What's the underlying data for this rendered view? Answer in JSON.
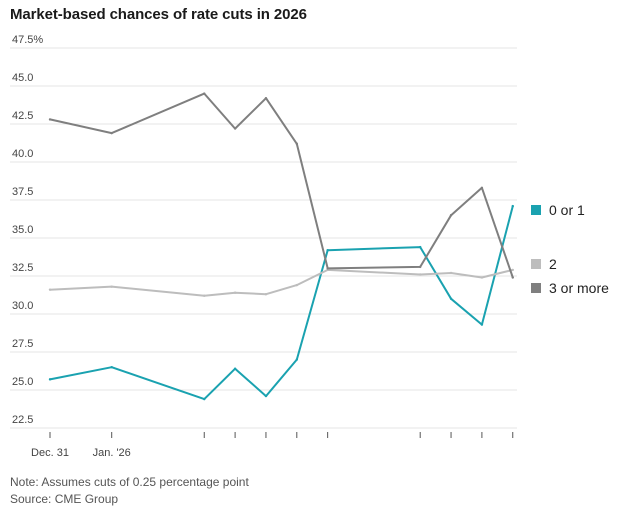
{
  "chart_data": {
    "type": "line",
    "title": "Market-based chances of rate cuts in 2026",
    "ylabel": "",
    "xlabel": "",
    "y_unit_suffix": "%",
    "ylim": [
      22.5,
      47.5
    ],
    "yticks": [
      "22.5",
      "25.0",
      "27.5",
      "30.0",
      "32.5",
      "35.0",
      "37.5",
      "40.0",
      "42.5",
      "45.0",
      "47.5%"
    ],
    "ytick_values": [
      22.5,
      25.0,
      27.5,
      30.0,
      32.5,
      35.0,
      37.5,
      40.0,
      42.5,
      45.0,
      47.5
    ],
    "xticks": [
      "Dec. 31",
      "Jan. '26",
      "",
      "",
      "",
      "",
      "",
      "",
      "",
      "",
      ""
    ],
    "x": [
      0,
      2,
      5,
      6,
      7,
      8,
      9,
      12,
      13,
      14,
      15
    ],
    "grid": true,
    "legend_position": "right",
    "series": [
      {
        "name": "0 or 1",
        "color": "#1aa2b0",
        "values": [
          25.7,
          26.5,
          24.4,
          26.4,
          24.6,
          27.0,
          34.2,
          34.4,
          31.0,
          29.3,
          37.1
        ]
      },
      {
        "name": "2",
        "color": "#bdbdbd",
        "values": [
          31.6,
          31.8,
          31.2,
          31.4,
          31.3,
          31.9,
          32.9,
          32.6,
          32.7,
          32.4,
          32.9
        ]
      },
      {
        "name": "3 or more",
        "color": "#7f7f7f",
        "values": [
          42.8,
          41.9,
          44.5,
          42.2,
          44.2,
          41.2,
          33.0,
          33.1,
          36.5,
          38.3,
          32.4
        ]
      }
    ]
  },
  "footer": {
    "note": "Note: Assumes cuts of 0.25 percentage point",
    "source": "Source: CME Group"
  }
}
